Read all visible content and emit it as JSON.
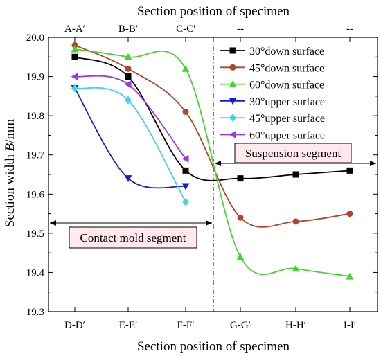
{
  "chart_data": {
    "type": "line",
    "xlabel_bottom": "Section position of specimen",
    "xlabel_top": "Section position of specimen",
    "ylabel_prefix": "Section width ",
    "ylabel_var": "B",
    "ylabel_suffix": "/mm",
    "categories_bottom": [
      "D-D′",
      "E-E′",
      "F-F′",
      "G-G′",
      "H-H′",
      "I-I′"
    ],
    "categories_top": [
      "A-A′",
      "B-B′",
      "C-C'",
      "--",
      "",
      "--"
    ],
    "ylim": [
      19.3,
      20.0
    ],
    "yticks": [
      "19.3",
      "19.4",
      "19.5",
      "19.6",
      "19.7",
      "19.8",
      "19.9",
      "20.0"
    ],
    "series": [
      {
        "name": "30°down surface",
        "color": "#000000",
        "marker": "square",
        "values": [
          19.95,
          19.9,
          19.66,
          19.64,
          19.65,
          19.66
        ]
      },
      {
        "name": "45°down surface",
        "color": "#b5432b",
        "marker": "circle",
        "values": [
          19.98,
          19.92,
          19.81,
          19.54,
          19.53,
          19.55
        ]
      },
      {
        "name": "60°down surface",
        "color": "#44d62c",
        "marker": "triangle-up",
        "values": [
          19.97,
          19.95,
          19.92,
          19.44,
          19.41,
          19.39
        ]
      },
      {
        "name": "30°upper surface",
        "color": "#1a1ad6",
        "marker": "triangle-down",
        "values": [
          19.87,
          19.64,
          19.62,
          null,
          null,
          null
        ]
      },
      {
        "name": "45°upper surface",
        "color": "#3ad6ea",
        "marker": "diamond",
        "values": [
          19.87,
          19.84,
          19.58,
          null,
          null,
          null
        ]
      },
      {
        "name": "60°upper surface",
        "color": "#a233e0",
        "marker": "triangle-left",
        "values": [
          19.9,
          19.88,
          19.69,
          null,
          null,
          null
        ]
      }
    ],
    "annotations": {
      "suspension": "Suspension segment",
      "contact": "Contact mold segment"
    }
  }
}
